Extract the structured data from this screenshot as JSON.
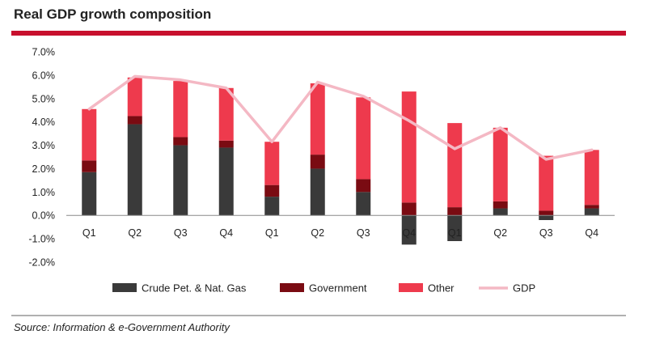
{
  "header": {
    "title": "Real GDP growth composition"
  },
  "footer": {
    "source": "Source: Information & e-Government Authority"
  },
  "colors": {
    "rule": "#c8102e",
    "crude": "#3a3a3a",
    "government": "#7a0b12",
    "other": "#ee3a4d",
    "gdp": "#f4b8c4"
  },
  "chart_data": {
    "type": "bar",
    "stacked": true,
    "title": "Real GDP growth composition",
    "xlabel": "",
    "ylabel": "",
    "ylim": [
      -2.0,
      7.0
    ],
    "yticks": [
      "7.0%",
      "6.0%",
      "5.0%",
      "4.0%",
      "3.0%",
      "2.0%",
      "1.0%",
      "0.0%",
      "-1.0%",
      "-2.0%"
    ],
    "ytick_values": [
      7,
      6,
      5,
      4,
      3,
      2,
      1,
      0,
      -1,
      -2
    ],
    "categories": [
      "Q1",
      "Q2",
      "Q3",
      "Q4",
      "Q1",
      "Q2",
      "Q3",
      "Q4",
      "Q1",
      "Q2",
      "Q3",
      "Q4"
    ],
    "series": [
      {
        "name": "Crude Pet. & Nat. Gas",
        "values": [
          1.85,
          3.9,
          3.0,
          2.9,
          0.8,
          2.0,
          1.0,
          -1.25,
          -1.1,
          0.3,
          -0.2,
          0.3
        ]
      },
      {
        "name": "Government",
        "values": [
          0.5,
          0.35,
          0.35,
          0.3,
          0.5,
          0.6,
          0.55,
          0.55,
          0.35,
          0.3,
          0.2,
          0.15
        ]
      },
      {
        "name": "Other",
        "values": [
          2.2,
          1.65,
          2.4,
          2.25,
          1.85,
          3.05,
          3.5,
          4.75,
          3.6,
          3.15,
          2.35,
          2.35
        ]
      }
    ],
    "line": {
      "name": "GDP",
      "values": [
        4.55,
        5.95,
        5.8,
        5.45,
        3.15,
        5.7,
        5.1,
        4.05,
        2.85,
        3.75,
        2.4,
        2.8
      ]
    },
    "legend_position": "bottom",
    "grid": false
  }
}
